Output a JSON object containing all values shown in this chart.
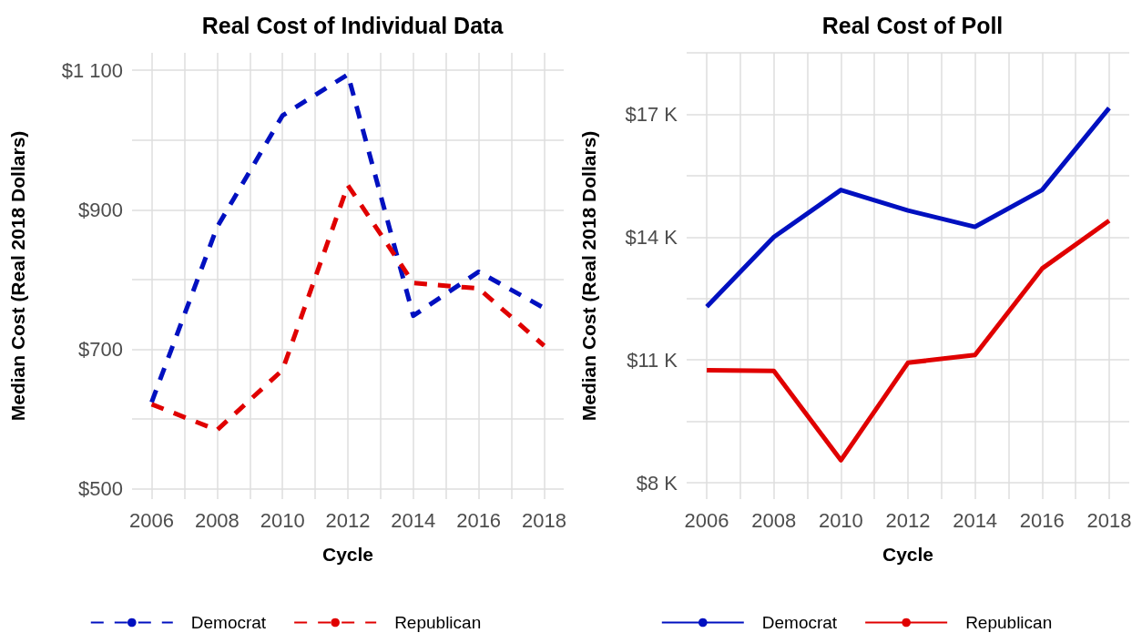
{
  "chart_data": [
    {
      "type": "line",
      "title": "Real Cost of Individual Data",
      "xlabel": "Cycle",
      "ylabel": "Median Cost (Real 2018 Dollars)",
      "x": [
        2006,
        2008,
        2010,
        2012,
        2014,
        2016,
        2018
      ],
      "series": [
        {
          "name": "Democrat",
          "color": "#0010c0",
          "values": [
            624,
            875,
            1035,
            1094,
            748,
            811,
            759
          ]
        },
        {
          "name": "Republican",
          "color": "#e00000",
          "values": [
            621,
            584,
            670,
            935,
            795,
            787,
            705
          ]
        }
      ],
      "xlim": [
        2005.4,
        2018.6
      ],
      "xticks": [
        2006,
        {
          "value": 2007,
          "label": null
        },
        2008,
        {
          "value": 2009,
          "label": null
        },
        2010,
        {
          "value": 2011,
          "label": null
        },
        2012,
        {
          "value": 2013,
          "label": null
        },
        2014,
        {
          "value": 2015,
          "label": null
        },
        2016,
        {
          "value": 2017,
          "label": null
        },
        2018
      ],
      "ylim": [
        485,
        1125
      ],
      "yticks": [
        {
          "value": 500,
          "label": "$500"
        },
        {
          "value": 600,
          "label": null
        },
        {
          "value": 700,
          "label": "$700"
        },
        {
          "value": 800,
          "label": null
        },
        {
          "value": 900,
          "label": "$900"
        },
        {
          "value": 1000,
          "label": null
        },
        {
          "value": 1100,
          "label": "$1 100"
        }
      ],
      "grid": true,
      "legend": "bottom",
      "marker": "none",
      "line_style": "dashed"
    },
    {
      "type": "line",
      "title": "Real Cost of Poll",
      "xlabel": "Cycle",
      "ylabel": "Median Cost (Real 2018 Dollars)",
      "x": [
        2006,
        2008,
        2010,
        2012,
        2014,
        2016,
        2018
      ],
      "series": [
        {
          "name": "Democrat",
          "color": "#0010c0",
          "values": [
            12300,
            14000,
            15150,
            14650,
            14250,
            15150,
            17150
          ]
        },
        {
          "name": "Republican",
          "color": "#e00000",
          "values": [
            10750,
            10730,
            8550,
            10930,
            11120,
            13230,
            14400
          ]
        }
      ],
      "xlim": [
        2005.4,
        2018.6
      ],
      "xticks": [
        2006,
        {
          "value": 2007,
          "label": null
        },
        2008,
        {
          "value": 2009,
          "label": null
        },
        2010,
        {
          "value": 2011,
          "label": null
        },
        2012,
        {
          "value": 2013,
          "label": null
        },
        2014,
        {
          "value": 2015,
          "label": null
        },
        2016,
        {
          "value": 2017,
          "label": null
        },
        2018
      ],
      "ylim": [
        7600,
        18500
      ],
      "yticks": [
        {
          "value": 8000,
          "label": "$8 K"
        },
        {
          "value": 9500,
          "label": null
        },
        {
          "value": 11000,
          "label": "$11 K"
        },
        {
          "value": 12500,
          "label": null
        },
        {
          "value": 14000,
          "label": "$14 K"
        },
        {
          "value": 15500,
          "label": null
        },
        {
          "value": 17000,
          "label": "$17 K"
        },
        {
          "value": 18500,
          "label": null
        }
      ],
      "grid": true,
      "legend": "bottom",
      "marker": "none",
      "line_style": "solid"
    }
  ]
}
